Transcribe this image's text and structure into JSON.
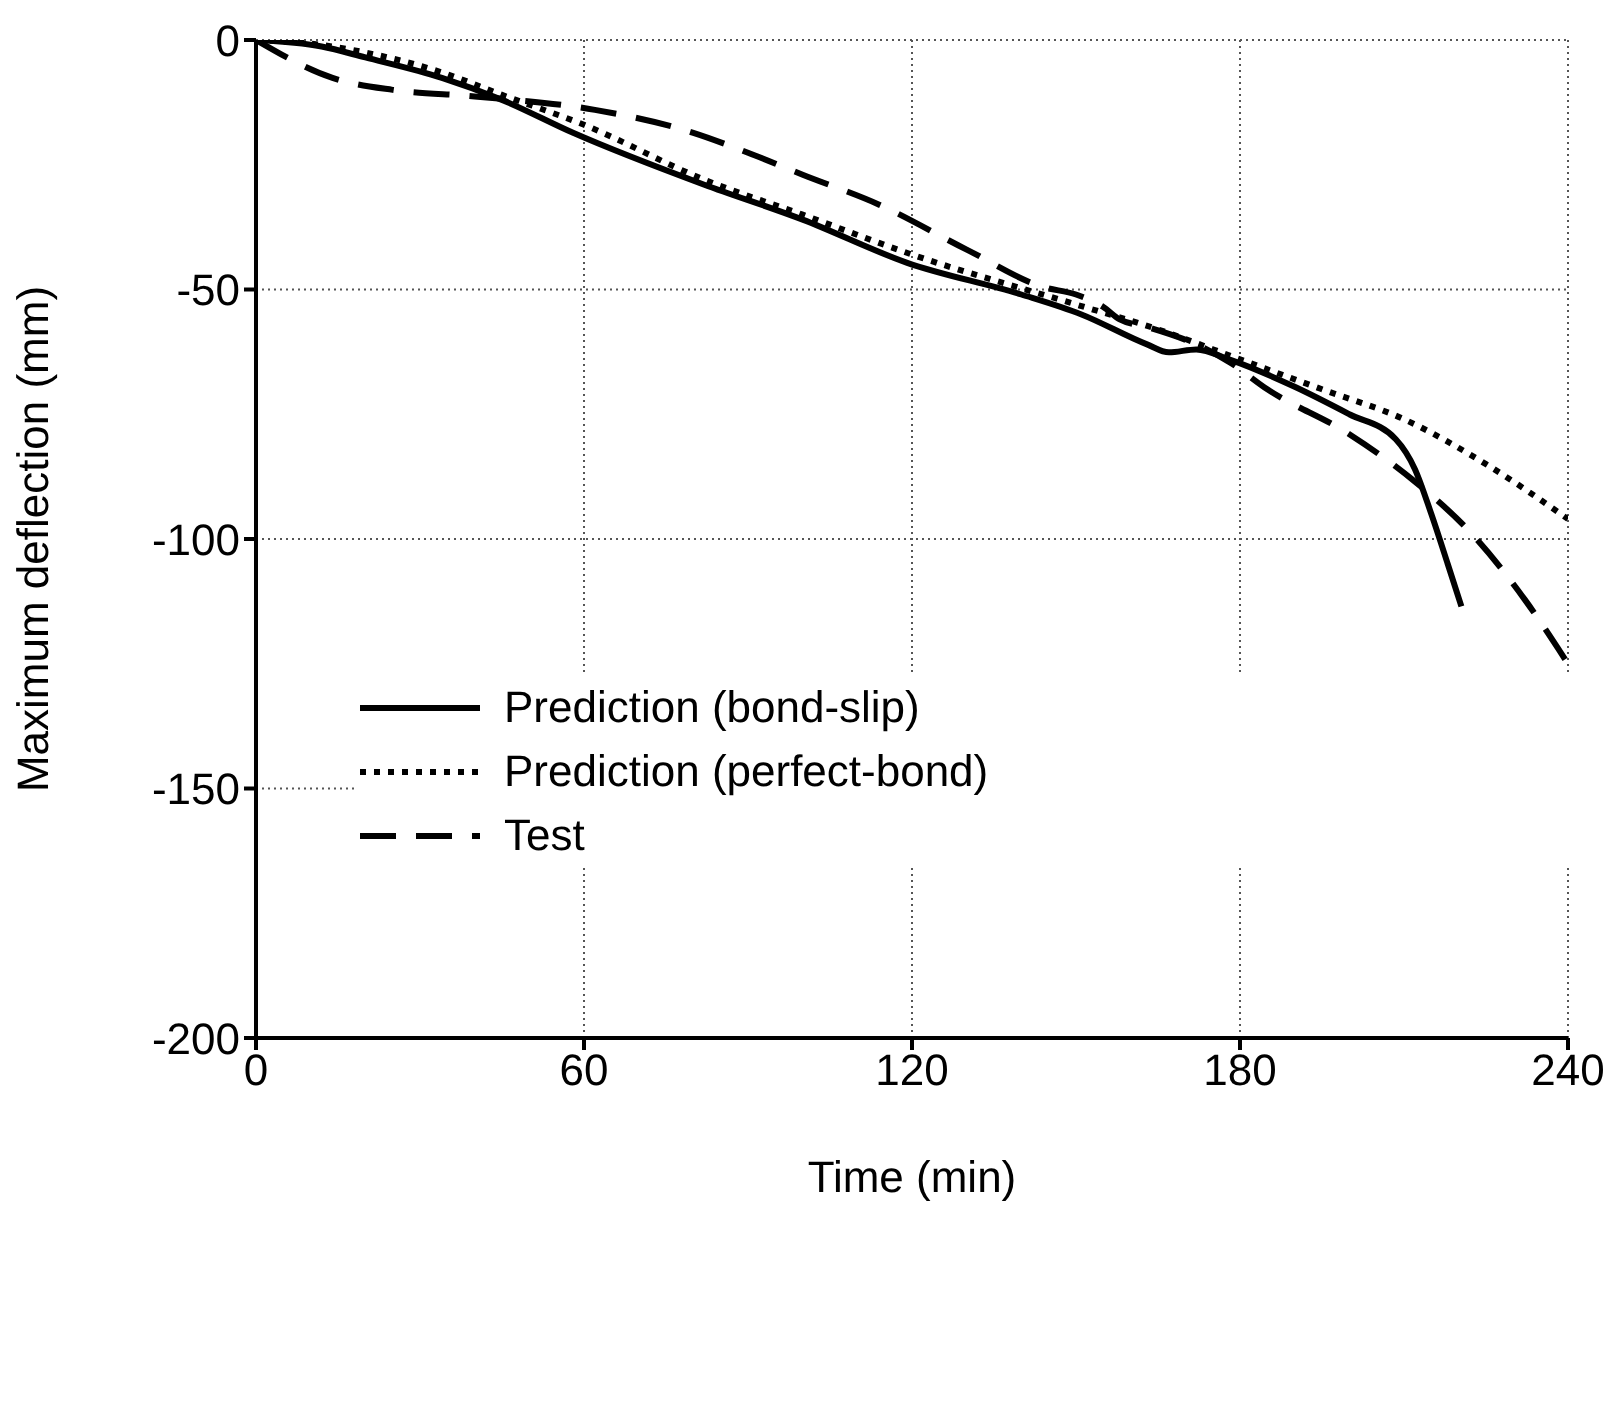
{
  "chart_data": {
    "type": "line",
    "xlabel": "Time (min)",
    "ylabel": "Maximum deflection (mm)",
    "xlim": [
      0,
      240
    ],
    "xticks": [
      0,
      60,
      120,
      180,
      240
    ],
    "ylim": [
      -200,
      0
    ],
    "yticks": [
      -200,
      -150,
      -100,
      -50,
      0
    ],
    "grid": true,
    "legend": "left",
    "marker": "none",
    "series": [
      {
        "name": "Prediction (bond-slip)",
        "color": "#000000",
        "line_style": "solid",
        "x": [
          0,
          12,
          20,
          34,
          45,
          58,
          82,
          100,
          119,
          140,
          151,
          163,
          167,
          172,
          178,
          190,
          200,
          208.5,
          212,
          215,
          218,
          220.5
        ],
        "values": [
          0,
          -1.3,
          -3.5,
          -7.6,
          -12,
          -18.6,
          -29,
          -36,
          -44.6,
          -51,
          -55,
          -61,
          -62.6,
          -62,
          -64,
          -69.5,
          -75,
          -80,
          -86,
          -95,
          -105,
          -113.5
        ]
      },
      {
        "name": "Prediction (perfect-bond)",
        "color": "#000000",
        "line_style": "dotted",
        "x": [
          0,
          12,
          20,
          34,
          45,
          60,
          82,
          100,
          120,
          150,
          165,
          180,
          195,
          210,
          225,
          240
        ],
        "values": [
          0,
          -1,
          -2.5,
          -6.5,
          -11,
          -17,
          -28,
          -35,
          -43,
          -53,
          -58,
          -64,
          -70,
          -76,
          -85,
          -96
        ]
      },
      {
        "name": "Test",
        "color": "#000000",
        "line_style": "dashed",
        "x": [
          0,
          14,
          25,
          40,
          62,
          80,
          90,
          100,
          114,
          130,
          144,
          150,
          155,
          158,
          163,
          172,
          178,
          185,
          200,
          212,
          222,
          232,
          240
        ],
        "values": [
          0,
          -7.6,
          -10,
          -11.3,
          -14,
          -18.6,
          -22.6,
          -27,
          -33,
          -42,
          -49.5,
          -51,
          -53.5,
          -56,
          -57.5,
          -61,
          -64.5,
          -70,
          -79,
          -88.5,
          -98.5,
          -112,
          -125
        ]
      }
    ]
  }
}
